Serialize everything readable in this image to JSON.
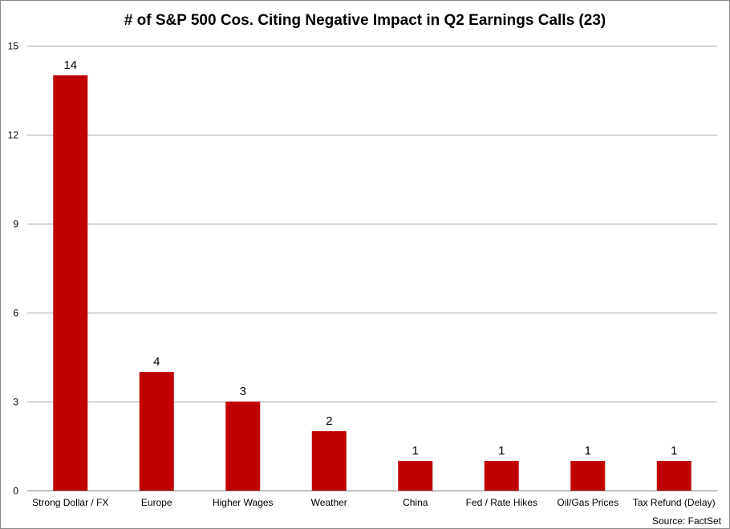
{
  "chart_data": {
    "type": "bar",
    "title": "# of S&P 500 Cos. Citing Negative Impact in Q2 Earnings Calls (23)",
    "xlabel": "",
    "ylabel": "",
    "categories": [
      "Strong Dollar / FX",
      "Europe",
      "Higher Wages",
      "Weather",
      "China",
      "Fed / Rate Hikes",
      "Oil/Gas Prices",
      "Tax Refund (Delay)"
    ],
    "values": [
      14,
      4,
      3,
      2,
      1,
      1,
      1,
      1
    ],
    "data_labels": [
      "14",
      "4",
      "3",
      "2",
      "1",
      "1",
      "1",
      "1"
    ],
    "ylim": [
      0,
      15
    ],
    "yticks": [
      0,
      3,
      6,
      9,
      12,
      15
    ],
    "grid": true,
    "legend": "none",
    "bar_color": "#c00000",
    "source": "Source: FactSet"
  }
}
